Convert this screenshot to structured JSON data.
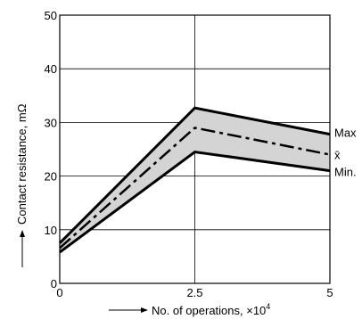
{
  "chart_data": {
    "type": "line",
    "x": [
      0,
      2.5,
      5
    ],
    "x_tick_labels": [
      "0",
      "2.5",
      "5"
    ],
    "y_tick_labels": [
      "0",
      "10",
      "20",
      "30",
      "40",
      "50"
    ],
    "xlim": [
      0,
      5
    ],
    "ylim": [
      0,
      50
    ],
    "xlabel": "No. of operations, ×10",
    "xlabel_exponent": "4",
    "ylabel": "Contact resistance, mΩ",
    "grid": true,
    "band_fill": "#d4d4d4",
    "line_color": "#000000",
    "series": [
      {
        "name": "Max",
        "values": [
          7.5,
          32.7,
          27.8
        ],
        "style": "solid"
      },
      {
        "name": "x̄",
        "values": [
          6.6,
          29.0,
          24.0
        ],
        "style": "dashdot"
      },
      {
        "name": "Min.",
        "values": [
          5.8,
          24.5,
          21.0
        ],
        "style": "solid"
      }
    ]
  }
}
